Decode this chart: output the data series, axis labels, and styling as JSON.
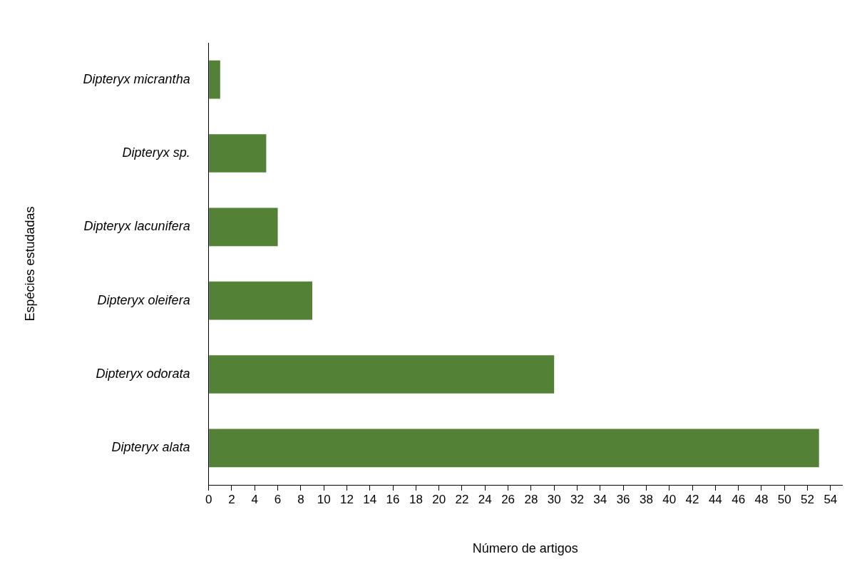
{
  "chart_data": {
    "type": "bar",
    "orientation": "horizontal",
    "categories": [
      "Dipteryx micrantha",
      "Dipteryx sp.",
      "Dipteryx lacunifera",
      "Dipteryx oleifera",
      "Dipteryx odorata",
      "Dipteryx alata"
    ],
    "values": [
      1,
      5,
      6,
      9,
      30,
      53
    ],
    "color": "#538135",
    "xlabel": "Número de artigos",
    "ylabel": "Espécies estudadas",
    "xlim": [
      0,
      55
    ],
    "xticks": [
      0,
      2,
      4,
      6,
      8,
      10,
      12,
      14,
      16,
      18,
      20,
      22,
      24,
      26,
      28,
      30,
      32,
      34,
      36,
      38,
      40,
      42,
      44,
      46,
      48,
      50,
      52,
      54
    ],
    "grid": false,
    "legend": false
  }
}
